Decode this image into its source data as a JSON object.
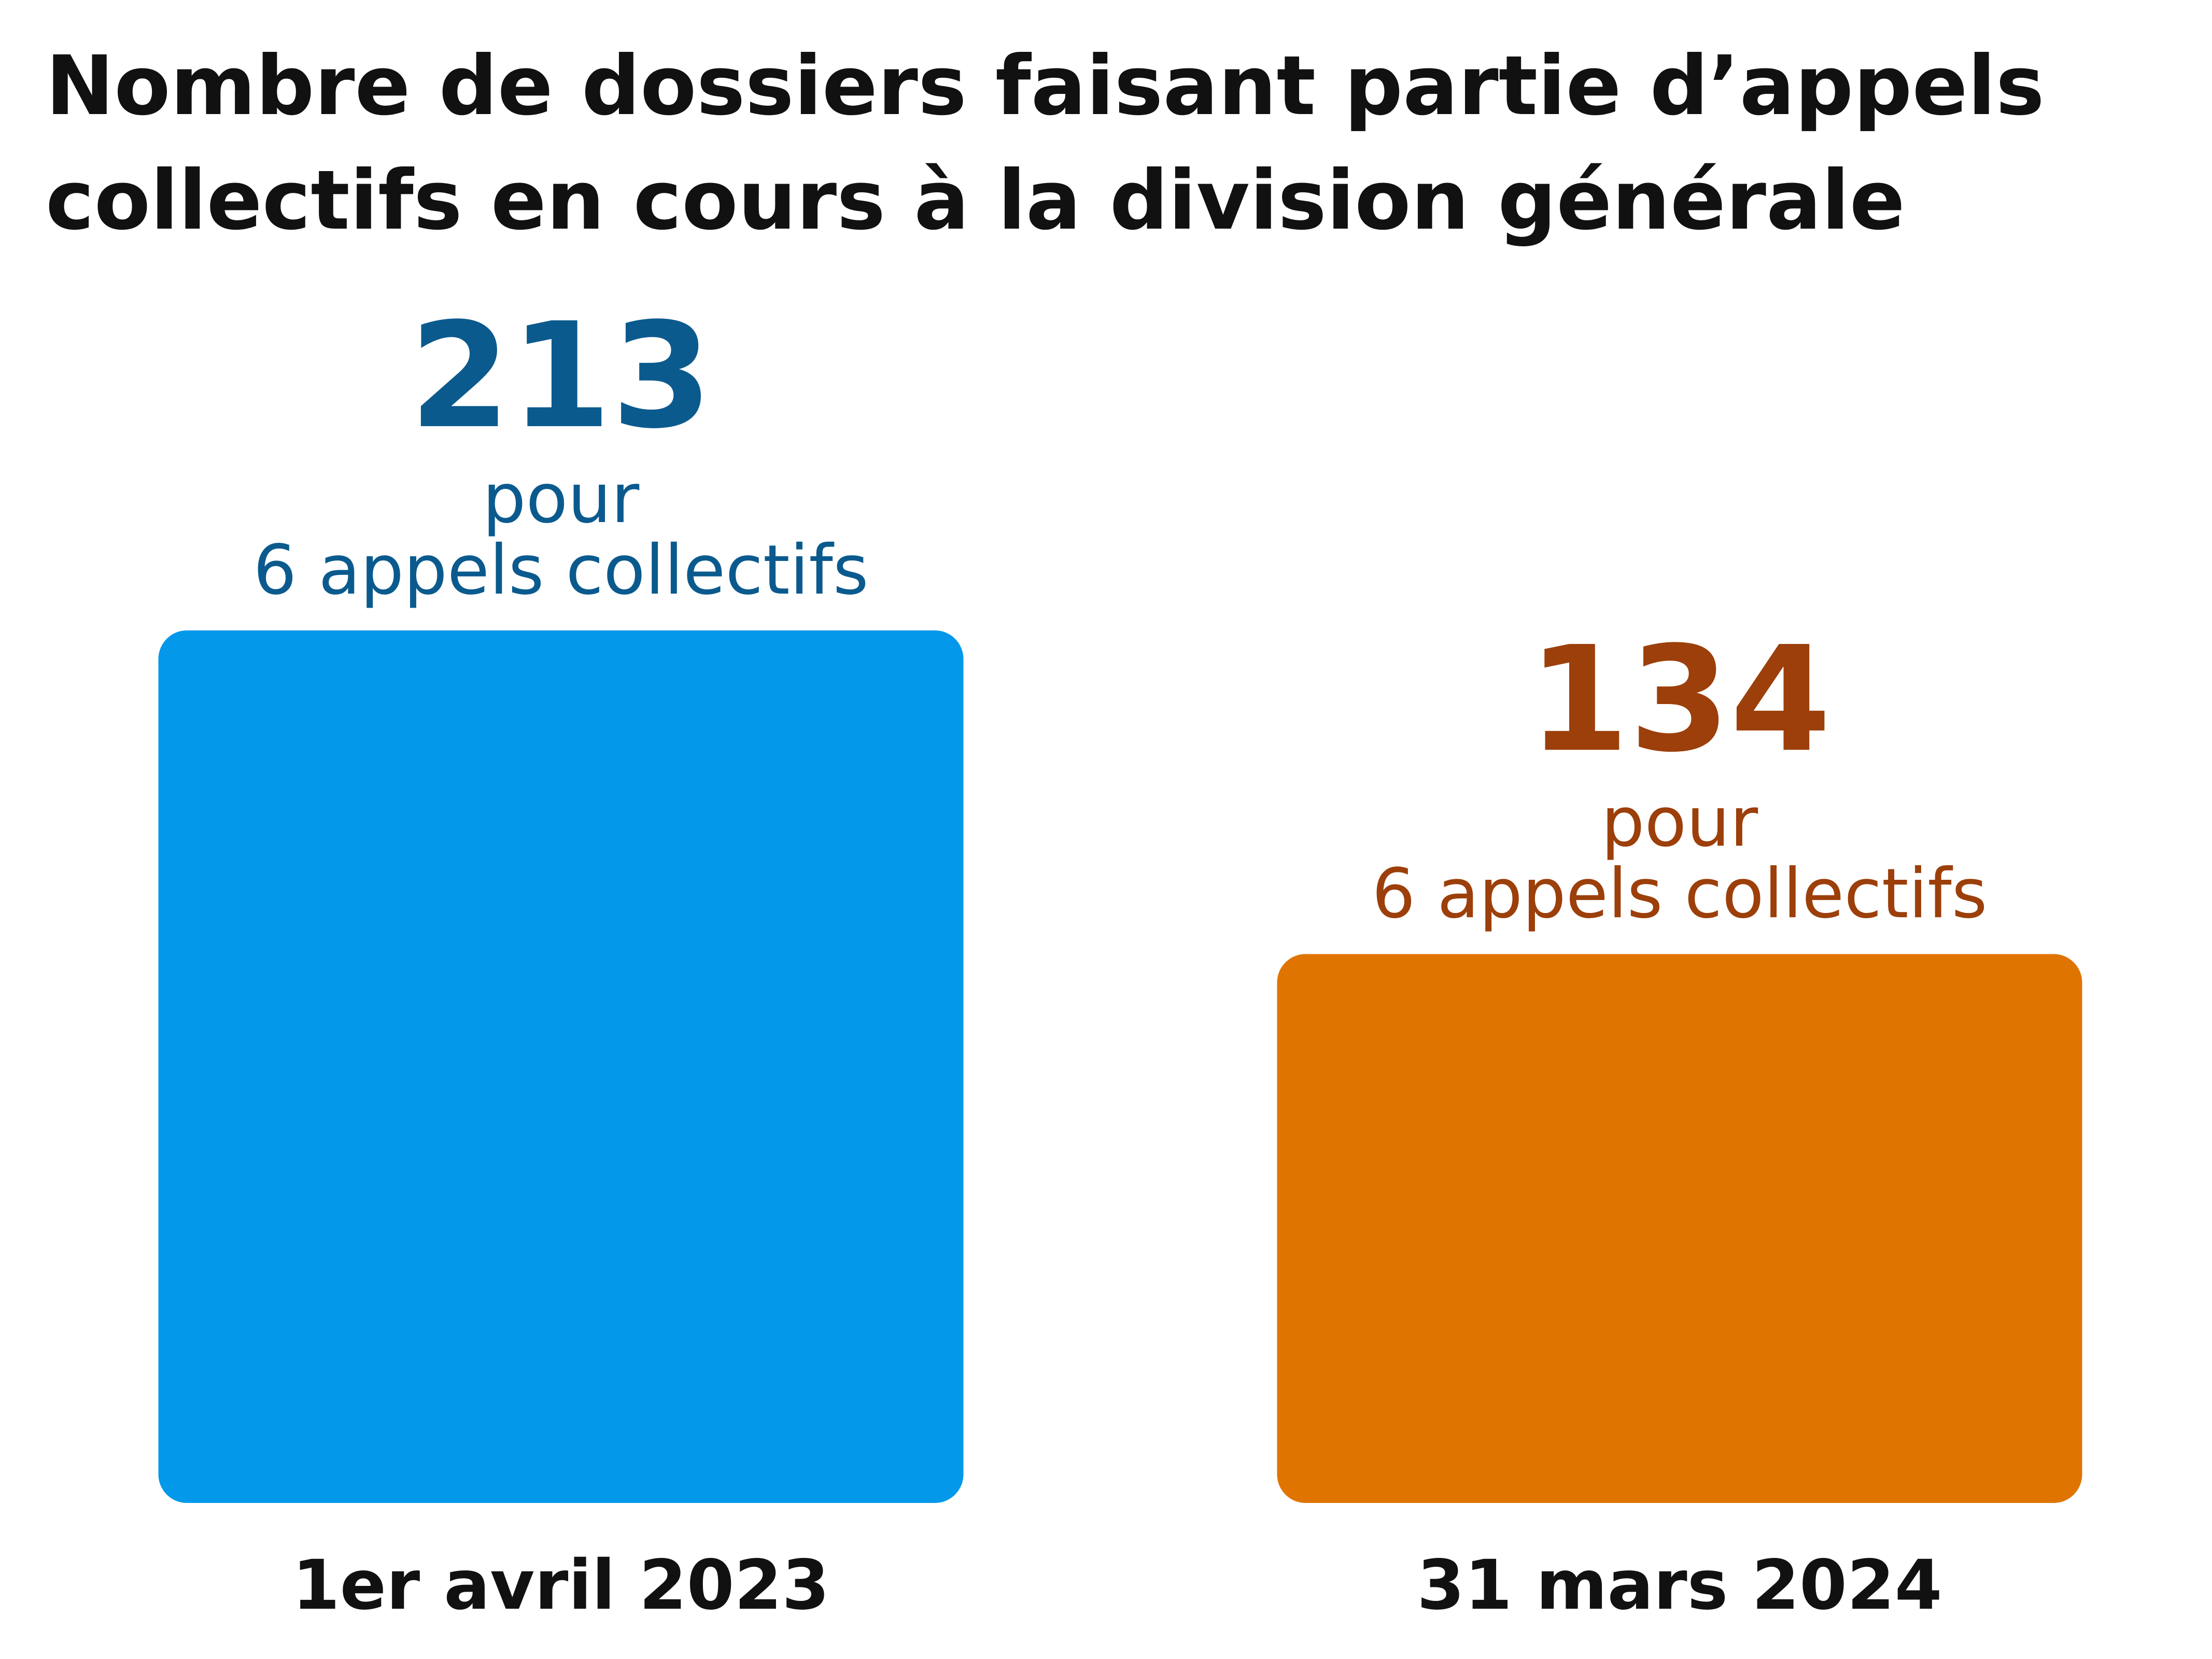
{
  "chart_data": {
    "type": "bar",
    "title": [
      "Nombre de dossiers faisant partie d’appels",
      "collectifs en cours à la division générale"
    ],
    "categories": [
      "1er avril 2023",
      "31 mars 2024"
    ],
    "values": [
      213,
      134
    ],
    "colors": [
      "#0398ea",
      "#e07400"
    ],
    "label_colors": [
      "#0b5a8e",
      "#9c3f0a"
    ],
    "annotations": [
      [
        "pour",
        "6 appels collectifs"
      ],
      [
        "pour",
        "6 appels collectifs"
      ]
    ]
  }
}
